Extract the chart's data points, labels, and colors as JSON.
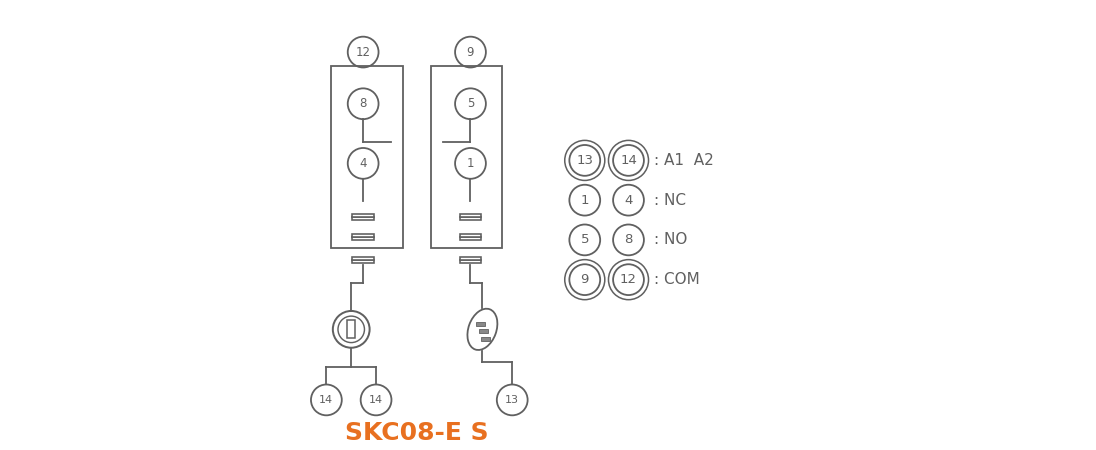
{
  "title": "SKC08-E S",
  "title_color": "#E87020",
  "title_fontsize": 18,
  "bg_color": "#ffffff",
  "line_color": "#606060",
  "lw": 1.3,
  "legend_lines": [
    {
      "circles": [
        "13",
        "14"
      ],
      "label": ": A1  A2"
    },
    {
      "circles": [
        "1",
        "4"
      ],
      "label": ": NC"
    },
    {
      "circles": [
        "5",
        "8"
      ],
      "label": ": NO"
    },
    {
      "circles": [
        "9",
        "12"
      ],
      "label": ": COM"
    }
  ],
  "left_pins": [
    "12",
    "8",
    "4"
  ],
  "right_pins": [
    "9",
    "5",
    "1"
  ],
  "coil_pins": [
    "14",
    "14",
    "13"
  ]
}
